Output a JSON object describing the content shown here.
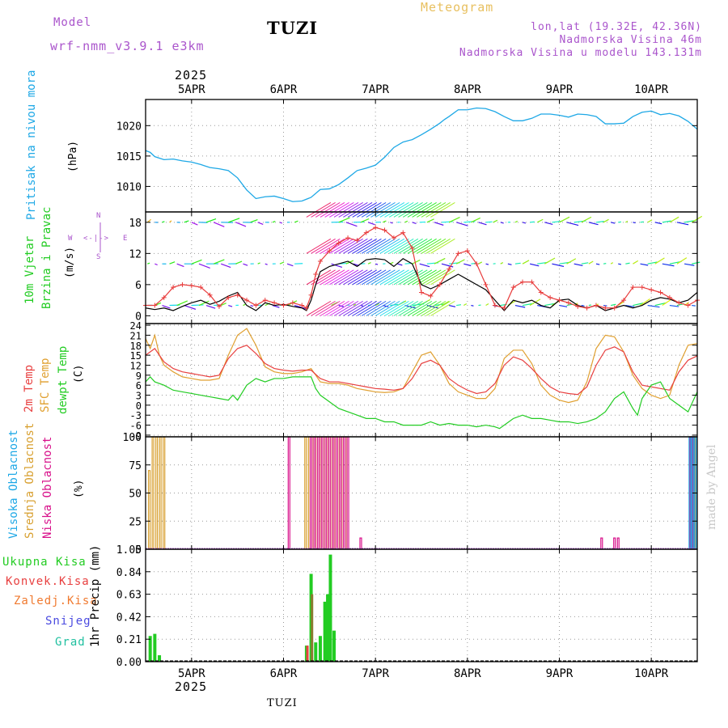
{
  "header": {
    "model_label": "Model",
    "model_name": "wrf-nmm_v3.9.1 e3km",
    "station": "TUZI",
    "meteogram": "Meteogram",
    "coords": "lon,lat (19.32E, 42.36N)",
    "altitude": "Nadmorska Visina 46m",
    "model_altitude": "Nadmorska Visina u modelu 143.131m",
    "year_top": "2025",
    "year_bottom": "2025",
    "footer_station": "TUZI",
    "watermark": "made by Angel"
  },
  "colors": {
    "pressure": "#1ea8e6",
    "wind_label": "#22cc22",
    "wind_speed": "#000000",
    "wind_gust": "#e83c3c",
    "t2m": "#e84040",
    "tsfc": "#e0a030",
    "dewpt": "#22cc22",
    "cloud_high": "#1ea8e6",
    "cloud_mid": "#d8a030",
    "cloud_low": "#d8108a",
    "precip_total": "#22cc22",
    "precip_conv": "#e84040",
    "precip_frz": "#f07a30",
    "snow": "#4a4ae0",
    "graupel": "#20c0a0",
    "header": "#aa55cc",
    "meteogram": "#e8c060"
  },
  "labels": {
    "pressure": [
      "Pritisak na nivou mora",
      "(hPa)"
    ],
    "wind": [
      "10m Vjetar",
      "Brzina i Pravac",
      "(m/s)"
    ],
    "temp": [
      "2m Temp",
      "SFC Temp",
      "dewpt Temp",
      "(C)"
    ],
    "cloud": [
      "Visoka Oblacnost",
      "Srednja Oblacnost",
      "Niska Oblacnost",
      "(%)"
    ],
    "precip": [
      "Ukupna Kisa",
      "Konvek.Kisa",
      "Zaledj.Kisa",
      "Snijeg",
      "Grad",
      "1hr Precip (mm)"
    ],
    "compass": {
      "n": "N",
      "w": "W",
      "e": "E",
      "s": "S",
      "arrow": "<-|->"
    }
  },
  "chart_data": [
    {
      "type": "line",
      "id": "pressure",
      "x_labels": [
        "5APR",
        "6APR",
        "7APR",
        "8APR",
        "9APR",
        "10APR"
      ],
      "x_days": [
        4.5,
        10.5
      ],
      "ylim": [
        1005.8,
        1024.3
      ],
      "yticks": [
        1010,
        1015,
        1020
      ],
      "series": [
        {
          "name": "Pritisak na nivou mora",
          "x": [
            4.5,
            4.55,
            4.6,
            4.7,
            4.8,
            4.9,
            5.0,
            5.1,
            5.2,
            5.3,
            5.4,
            5.5,
            5.6,
            5.7,
            5.8,
            5.9,
            6.0,
            6.1,
            6.2,
            6.3,
            6.4,
            6.5,
            6.6,
            6.7,
            6.8,
            6.9,
            7.0,
            7.1,
            7.2,
            7.3,
            7.4,
            7.5,
            7.6,
            7.7,
            7.75,
            7.8,
            7.9,
            8.0,
            8.1,
            8.2,
            8.3,
            8.4,
            8.5,
            8.6,
            8.7,
            8.8,
            8.9,
            9.0,
            9.1,
            9.2,
            9.3,
            9.4,
            9.5,
            9.6,
            9.7,
            9.8,
            9.9,
            10.0,
            10.1,
            10.2,
            10.3,
            10.4,
            10.5
          ],
          "y": [
            1015.9,
            1015.6,
            1014.9,
            1014.4,
            1014.5,
            1014.2,
            1014.0,
            1013.6,
            1013.1,
            1012.9,
            1012.6,
            1011.4,
            1009.4,
            1008.0,
            1008.3,
            1008.4,
            1008.0,
            1007.5,
            1007.6,
            1008.2,
            1009.5,
            1009.6,
            1010.3,
            1011.4,
            1012.6,
            1013.0,
            1013.5,
            1014.8,
            1016.4,
            1017.3,
            1017.7,
            1018.5,
            1019.4,
            1020.4,
            1021.0,
            1021.5,
            1022.6,
            1022.6,
            1022.9,
            1022.8,
            1022.3,
            1021.5,
            1020.8,
            1020.8,
            1021.2,
            1021.9,
            1021.9,
            1021.7,
            1021.4,
            1021.9,
            1021.8,
            1021.5,
            1020.3,
            1020.3,
            1020.4,
            1021.5,
            1022.2,
            1022.4,
            1021.8,
            1022.0,
            1021.6,
            1020.7,
            1019.4
          ]
        }
      ]
    },
    {
      "type": "line",
      "id": "wind",
      "ylim": [
        -1.5,
        20
      ],
      "yticks": [
        0,
        6,
        12,
        18
      ],
      "series": [
        {
          "name": "Brzina",
          "x": [
            4.5,
            4.6,
            4.7,
            4.8,
            4.9,
            5.0,
            5.1,
            5.2,
            5.3,
            5.4,
            5.5,
            5.6,
            5.7,
            5.8,
            5.9,
            6.0,
            6.1,
            6.2,
            6.25,
            6.3,
            6.35,
            6.4,
            6.5,
            6.6,
            6.7,
            6.8,
            6.9,
            7.0,
            7.1,
            7.2,
            7.3,
            7.4,
            7.5,
            7.6,
            7.7,
            7.8,
            7.9,
            8.0,
            8.1,
            8.2,
            8.3,
            8.4,
            8.5,
            8.6,
            8.7,
            8.8,
            8.9,
            9.0,
            9.1,
            9.2,
            9.3,
            9.4,
            9.5,
            9.6,
            9.7,
            9.8,
            9.9,
            10.0,
            10.1,
            10.2,
            10.3,
            10.4,
            10.5
          ],
          "y": [
            1.5,
            1.2,
            1.5,
            1.0,
            1.8,
            2.5,
            3.0,
            2.2,
            2.8,
            3.8,
            4.5,
            2.0,
            1.0,
            2.5,
            2.0,
            2.2,
            1.8,
            1.5,
            1.0,
            3.0,
            6.0,
            8.5,
            9.5,
            10.0,
            10.5,
            9.5,
            10.8,
            11.0,
            10.8,
            9.5,
            11.0,
            10.0,
            6.0,
            5.2,
            6.0,
            7.0,
            8.0,
            7.0,
            6.0,
            5.0,
            3.0,
            1.0,
            3.0,
            2.5,
            3.0,
            2.0,
            1.5,
            3.0,
            3.2,
            2.0,
            1.5,
            2.0,
            1.0,
            1.5,
            2.0,
            1.5,
            2.0,
            3.0,
            3.5,
            3.2,
            2.5,
            3.0,
            4.5
          ]
        },
        {
          "name": "Udar",
          "x": [
            4.5,
            4.6,
            4.7,
            4.8,
            4.9,
            5.0,
            5.1,
            5.2,
            5.3,
            5.4,
            5.5,
            5.6,
            5.7,
            5.8,
            5.9,
            6.0,
            6.1,
            6.2,
            6.25,
            6.3,
            6.35,
            6.4,
            6.5,
            6.6,
            6.7,
            6.8,
            6.9,
            7.0,
            7.1,
            7.2,
            7.3,
            7.4,
            7.5,
            7.6,
            7.7,
            7.8,
            7.9,
            8.0,
            8.1,
            8.2,
            8.3,
            8.4,
            8.5,
            8.6,
            8.7,
            8.8,
            8.9,
            9.0,
            9.1,
            9.2,
            9.3,
            9.4,
            9.5,
            9.6,
            9.7,
            9.8,
            9.9,
            10.0,
            10.1,
            10.2,
            10.3,
            10.4,
            10.5
          ],
          "y": [
            2.0,
            2.0,
            3.5,
            5.5,
            6.0,
            5.8,
            5.5,
            4.0,
            1.8,
            3.5,
            4.0,
            3.0,
            2.0,
            3.0,
            2.5,
            2.0,
            2.5,
            2.0,
            1.5,
            4.0,
            8.0,
            10.5,
            12.5,
            14.0,
            15.0,
            14.5,
            16.0,
            17.0,
            16.5,
            15.0,
            16.0,
            13.0,
            4.5,
            3.8,
            6.0,
            9.0,
            12.0,
            12.5,
            10.0,
            6.0,
            2.0,
            1.5,
            5.5,
            6.5,
            6.5,
            4.5,
            3.5,
            3.0,
            2.5,
            1.8,
            1.5,
            2.0,
            1.5,
            1.5,
            3.0,
            5.5,
            5.5,
            5.0,
            4.5,
            3.5,
            2.5,
            2.0,
            3.0
          ]
        }
      ]
    },
    {
      "type": "line",
      "id": "temperature",
      "ylim": [
        -9.5,
        24.5
      ],
      "yticks": [
        24,
        21,
        18,
        15,
        12,
        9,
        6,
        3,
        0,
        -3,
        -6,
        -9
      ],
      "series": [
        {
          "name": "2m Temp",
          "x": [
            4.5,
            4.6,
            4.7,
            4.8,
            4.9,
            5.0,
            5.1,
            5.2,
            5.3,
            5.4,
            5.5,
            5.6,
            5.7,
            5.8,
            5.9,
            6.0,
            6.1,
            6.2,
            6.3,
            6.4,
            6.5,
            6.6,
            6.7,
            6.8,
            6.9,
            7.0,
            7.1,
            7.2,
            7.3,
            7.4,
            7.5,
            7.6,
            7.7,
            7.8,
            7.9,
            8.0,
            8.1,
            8.2,
            8.3,
            8.4,
            8.5,
            8.6,
            8.7,
            8.8,
            8.9,
            9.0,
            9.1,
            9.2,
            9.3,
            9.4,
            9.5,
            9.6,
            9.7,
            9.8,
            9.9,
            10.0,
            10.1,
            10.2,
            10.3,
            10.4,
            10.5
          ],
          "y": [
            15,
            17,
            13,
            11,
            10,
            9.5,
            9,
            8.5,
            9,
            14,
            17,
            18,
            15.5,
            12.5,
            11,
            10.5,
            10.2,
            10.5,
            10.5,
            8,
            7,
            7,
            6.5,
            6,
            5.5,
            5,
            4.8,
            4.5,
            5,
            8,
            12.5,
            13.5,
            12,
            8,
            6,
            4.5,
            3.5,
            4,
            6.5,
            12,
            14.5,
            13.5,
            11,
            8,
            5.5,
            4,
            3.5,
            3.2,
            5.5,
            12,
            16.5,
            17.5,
            16,
            10,
            6,
            5.5,
            5,
            4.5,
            10,
            13.5,
            14.8
          ]
        },
        {
          "name": "SFC Temp",
          "x": [
            4.5,
            4.55,
            4.6,
            4.65,
            4.7,
            4.8,
            4.9,
            5.0,
            5.1,
            5.2,
            5.3,
            5.4,
            5.5,
            5.6,
            5.7,
            5.8,
            5.9,
            6.0,
            6.1,
            6.2,
            6.3,
            6.4,
            6.5,
            6.6,
            6.7,
            6.8,
            6.9,
            7.0,
            7.1,
            7.2,
            7.3,
            7.4,
            7.5,
            7.6,
            7.7,
            7.8,
            7.9,
            8.0,
            8.1,
            8.2,
            8.3,
            8.4,
            8.5,
            8.6,
            8.7,
            8.8,
            8.9,
            9.0,
            9.1,
            9.2,
            9.3,
            9.4,
            9.5,
            9.6,
            9.7,
            9.8,
            9.9,
            10.0,
            10.1,
            10.2,
            10.3,
            10.4,
            10.5
          ],
          "y": [
            20,
            17,
            21,
            15,
            12,
            10,
            8.5,
            8,
            7.5,
            7.5,
            8,
            15,
            21,
            23,
            18,
            11.5,
            10,
            9.5,
            9.5,
            10,
            11,
            7,
            6.5,
            6.5,
            6,
            5,
            4.5,
            4,
            3.8,
            4,
            5,
            10,
            15,
            16,
            12,
            6.5,
            4,
            3,
            2,
            2,
            5,
            14,
            16.5,
            16.5,
            12.5,
            6,
            3,
            1.5,
            0.8,
            1.5,
            7,
            17,
            21,
            20.5,
            16,
            9,
            5,
            3,
            2,
            3,
            12,
            18,
            18.5
          ]
        },
        {
          "name": "dewpt Temp",
          "x": [
            4.5,
            4.55,
            4.6,
            4.7,
            4.8,
            4.9,
            5.0,
            5.1,
            5.2,
            5.3,
            5.4,
            5.45,
            5.5,
            5.6,
            5.7,
            5.8,
            5.9,
            6.0,
            6.1,
            6.2,
            6.3,
            6.35,
            6.4,
            6.5,
            6.6,
            6.7,
            6.8,
            6.9,
            7.0,
            7.1,
            7.2,
            7.3,
            7.4,
            7.5,
            7.6,
            7.7,
            7.8,
            7.9,
            8.0,
            8.1,
            8.2,
            8.3,
            8.35,
            8.4,
            8.5,
            8.6,
            8.7,
            8.8,
            8.9,
            9.0,
            9.1,
            9.2,
            9.3,
            9.4,
            9.5,
            9.6,
            9.7,
            9.8,
            9.85,
            9.9,
            10.0,
            10.1,
            10.2,
            10.3,
            10.4,
            10.5
          ],
          "y": [
            7,
            8.5,
            7,
            6,
            4.5,
            4,
            3.5,
            3,
            2.5,
            2,
            1.5,
            3,
            1.5,
            6,
            8,
            7,
            8,
            8,
            8.5,
            8.5,
            8.5,
            5,
            3,
            1,
            -1,
            -2,
            -3,
            -4,
            -4,
            -5,
            -5,
            -6,
            -6,
            -6,
            -5,
            -6,
            -5.5,
            -6,
            -6,
            -6.5,
            -6,
            -6.5,
            -7,
            -6,
            -4,
            -3,
            -4,
            -4,
            -4.5,
            -5,
            -5,
            -5.5,
            -5,
            -4,
            -2,
            2,
            4,
            -1,
            -3,
            2,
            6,
            7,
            2,
            0,
            -2,
            4
          ]
        }
      ]
    },
    {
      "type": "bar",
      "id": "cloud",
      "ylim": [
        0,
        100
      ],
      "yticks": [
        0,
        25,
        50,
        75,
        100
      ],
      "series": [
        {
          "name": "Visoka Oblacnost",
          "x": [
            10.42,
            10.45,
            10.48
          ],
          "values": [
            100,
            100,
            100
          ]
        },
        {
          "name": "Srednja Oblacnost",
          "x": [
            4.54,
            4.58,
            4.62,
            4.66,
            4.7,
            6.24,
            6.28,
            6.32,
            6.36,
            6.4,
            6.44,
            6.48,
            6.52,
            6.56,
            6.6,
            6.64,
            6.68,
            10.44,
            10.47
          ],
          "values": [
            70,
            100,
            100,
            100,
            100,
            100,
            100,
            100,
            100,
            100,
            100,
            100,
            100,
            100,
            100,
            100,
            100,
            100,
            100
          ]
        },
        {
          "name": "Niska Oblacnost",
          "x": [
            6.06,
            6.3,
            6.34,
            6.38,
            6.42,
            6.46,
            6.5,
            6.54,
            6.58,
            6.62,
            6.66,
            6.7,
            6.84,
            9.46,
            9.6,
            9.64,
            10.43,
            10.46
          ],
          "values": [
            100,
            100,
            100,
            100,
            100,
            100,
            100,
            100,
            100,
            100,
            100,
            100,
            10,
            10,
            10,
            10,
            100,
            100
          ]
        }
      ]
    },
    {
      "type": "bar",
      "id": "precip",
      "ylim": [
        0,
        1.05
      ],
      "yticks": [
        0,
        0.21,
        0.42,
        0.63,
        0.84,
        1.05
      ],
      "series": [
        {
          "name": "Ukupna Kisa",
          "x": [
            4.55,
            4.6,
            4.65,
            6.25,
            6.3,
            6.35,
            6.4,
            6.45,
            6.48,
            6.51,
            6.55
          ],
          "values": [
            0.24,
            0.26,
            0.06,
            0.15,
            0.82,
            0.18,
            0.24,
            0.56,
            0.63,
            1.0,
            0.29
          ]
        },
        {
          "name": "Konvek.Kisa",
          "x": [
            6.26
          ],
          "values": [
            0.15
          ]
        },
        {
          "name": "Zaledj.Kisa",
          "x": [
            6.31
          ],
          "values": [
            0.63
          ]
        },
        {
          "name": "Snijeg",
          "x": [],
          "values": []
        },
        {
          "name": "Grad",
          "x": [],
          "values": []
        }
      ]
    }
  ]
}
